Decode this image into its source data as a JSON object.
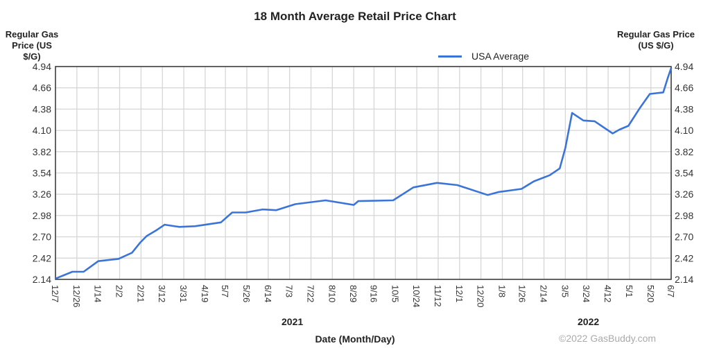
{
  "chart_data": {
    "type": "line",
    "title": "18 Month Average Retail Price Chart",
    "ylabel_left": "Regular Gas Price (US $/G)",
    "ylabel_right": "Regular Gas Price (US $/G)",
    "xlabel": "Date (Month/Day)",
    "ylim": [
      2.14,
      4.94
    ],
    "yticks": [
      "2.14",
      "2.42",
      "2.70",
      "2.98",
      "3.26",
      "3.54",
      "3.82",
      "4.10",
      "4.38",
      "4.66",
      "4.94"
    ],
    "xlim": [
      "2020-12-07",
      "2022-06-07"
    ],
    "xticks": [
      {
        "date": "2020-12-07",
        "label": "12/7"
      },
      {
        "date": "2020-12-26",
        "label": "12/26"
      },
      {
        "date": "2021-01-14",
        "label": "1/14"
      },
      {
        "date": "2021-02-02",
        "label": "2/2"
      },
      {
        "date": "2021-02-21",
        "label": "2/21"
      },
      {
        "date": "2021-03-12",
        "label": "3/12"
      },
      {
        "date": "2021-03-31",
        "label": "3/31"
      },
      {
        "date": "2021-04-19",
        "label": "4/19"
      },
      {
        "date": "2021-05-07",
        "label": "5/7"
      },
      {
        "date": "2021-05-26",
        "label": "5/26"
      },
      {
        "date": "2021-06-14",
        "label": "6/14"
      },
      {
        "date": "2021-07-03",
        "label": "7/3"
      },
      {
        "date": "2021-07-22",
        "label": "7/22"
      },
      {
        "date": "2021-08-10",
        "label": "8/10"
      },
      {
        "date": "2021-08-29",
        "label": "8/29"
      },
      {
        "date": "2021-09-16",
        "label": "9/16"
      },
      {
        "date": "2021-10-05",
        "label": "10/5"
      },
      {
        "date": "2021-10-24",
        "label": "10/24"
      },
      {
        "date": "2021-11-12",
        "label": "11/12"
      },
      {
        "date": "2021-12-01",
        "label": "12/1"
      },
      {
        "date": "2021-12-20",
        "label": "12/20"
      },
      {
        "date": "2022-01-08",
        "label": "1/8"
      },
      {
        "date": "2022-01-26",
        "label": "1/26"
      },
      {
        "date": "2022-02-14",
        "label": "2/14"
      },
      {
        "date": "2022-03-05",
        "label": "3/5"
      },
      {
        "date": "2022-03-24",
        "label": "3/24"
      },
      {
        "date": "2022-04-12",
        "label": "4/12"
      },
      {
        "date": "2022-05-01",
        "label": "5/1"
      },
      {
        "date": "2022-05-20",
        "label": "5/20"
      },
      {
        "date": "2022-06-07",
        "label": "6/7"
      }
    ],
    "year_labels": [
      {
        "label": "2021"
      },
      {
        "label": "2022"
      }
    ],
    "grid": true,
    "legend_position": "top-right",
    "series": [
      {
        "name": "USA Average",
        "color": "#3b74d8",
        "points": [
          [
            "2020-12-07",
            2.15
          ],
          [
            "2020-12-22",
            2.24
          ],
          [
            "2021-01-01",
            2.24
          ],
          [
            "2021-01-14",
            2.38
          ],
          [
            "2021-02-01",
            2.41
          ],
          [
            "2021-02-13",
            2.49
          ],
          [
            "2021-02-20",
            2.62
          ],
          [
            "2021-02-26",
            2.71
          ],
          [
            "2021-03-06",
            2.78
          ],
          [
            "2021-03-14",
            2.86
          ],
          [
            "2021-03-27",
            2.83
          ],
          [
            "2021-04-10",
            2.84
          ],
          [
            "2021-05-03",
            2.89
          ],
          [
            "2021-05-13",
            3.02
          ],
          [
            "2021-05-25",
            3.02
          ],
          [
            "2021-06-09",
            3.06
          ],
          [
            "2021-06-21",
            3.05
          ],
          [
            "2021-07-08",
            3.13
          ],
          [
            "2021-08-04",
            3.18
          ],
          [
            "2021-08-29",
            3.12
          ],
          [
            "2021-09-02",
            3.17
          ],
          [
            "2021-10-03",
            3.18
          ],
          [
            "2021-10-21",
            3.35
          ],
          [
            "2021-11-11",
            3.41
          ],
          [
            "2021-11-29",
            3.38
          ],
          [
            "2021-12-26",
            3.25
          ],
          [
            "2022-01-05",
            3.29
          ],
          [
            "2022-01-25",
            3.33
          ],
          [
            "2022-02-05",
            3.43
          ],
          [
            "2022-02-19",
            3.51
          ],
          [
            "2022-02-28",
            3.6
          ],
          [
            "2022-03-05",
            3.87
          ],
          [
            "2022-03-11",
            4.33
          ],
          [
            "2022-03-21",
            4.23
          ],
          [
            "2022-03-31",
            4.22
          ],
          [
            "2022-04-16",
            4.06
          ],
          [
            "2022-04-22",
            4.11
          ],
          [
            "2022-04-30",
            4.16
          ],
          [
            "2022-05-10",
            4.39
          ],
          [
            "2022-05-19",
            4.58
          ],
          [
            "2022-05-31",
            4.6
          ],
          [
            "2022-06-04",
            4.79
          ],
          [
            "2022-06-07",
            4.92
          ]
        ]
      }
    ],
    "credit": "©2022 GasBuddy.com"
  }
}
